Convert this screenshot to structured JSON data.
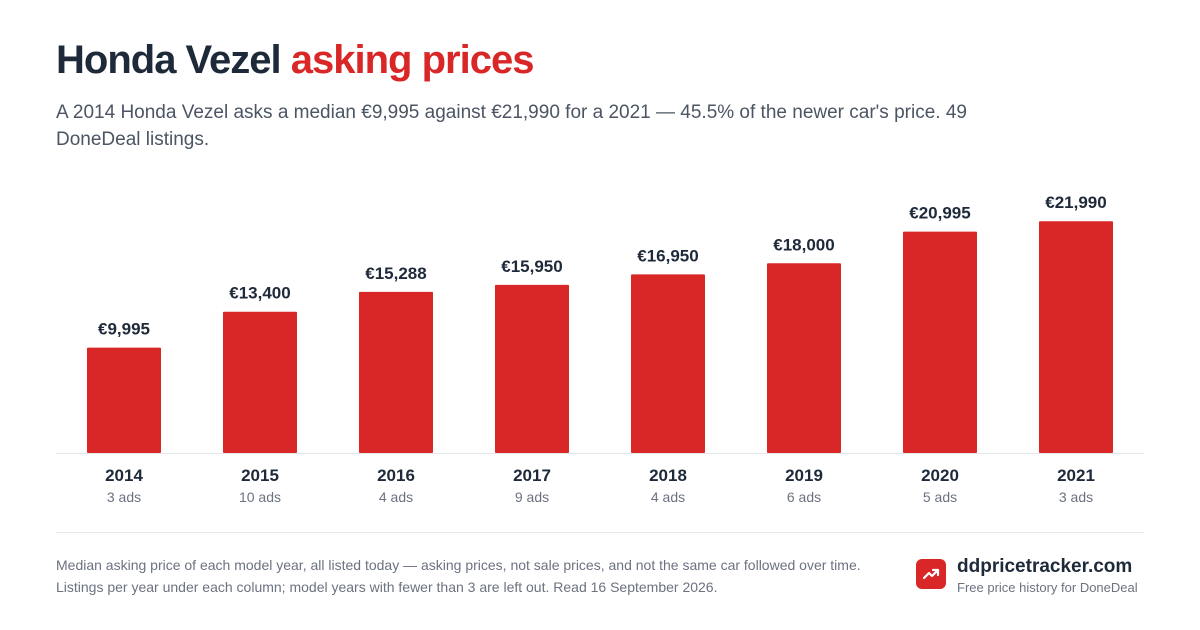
{
  "header": {
    "title_main": "Honda Vezel",
    "title_accent": "asking prices",
    "subtitle": "A 2014 Honda Vezel asks a median €9,995 against €21,990 for a 2021 — 45.5% of the newer car's price. 49 DoneDeal listings."
  },
  "chart_data": {
    "type": "bar",
    "categories": [
      "2014",
      "2015",
      "2016",
      "2017",
      "2018",
      "2019",
      "2020",
      "2021"
    ],
    "values": [
      9995,
      13400,
      15288,
      15950,
      16950,
      18000,
      20995,
      21990
    ],
    "value_labels": [
      "€9,995",
      "€13,400",
      "€15,288",
      "€15,950",
      "€16,950",
      "€18,000",
      "€20,995",
      "€21,990"
    ],
    "counts": [
      "3 ads",
      "10 ads",
      "4 ads",
      "9 ads",
      "4 ads",
      "6 ads",
      "5 ads",
      "3 ads"
    ],
    "ylim": [
      0,
      24000
    ],
    "grid": false,
    "bar_color": "#d92626"
  },
  "footer": {
    "note": "Median asking price of each model year, all listed today — asking prices, not sale prices, and not the same car followed over time. Listings per year under each column; model years with fewer than 3 are left out. Read 16 September 2026.",
    "brand_name": "ddpricetracker.com",
    "brand_tagline": "Free price history for DoneDeal",
    "brand_icon": "trending-up-icon"
  },
  "colors": {
    "accent": "#d92626",
    "text": "#1e2a3a",
    "muted": "#6b7280"
  }
}
